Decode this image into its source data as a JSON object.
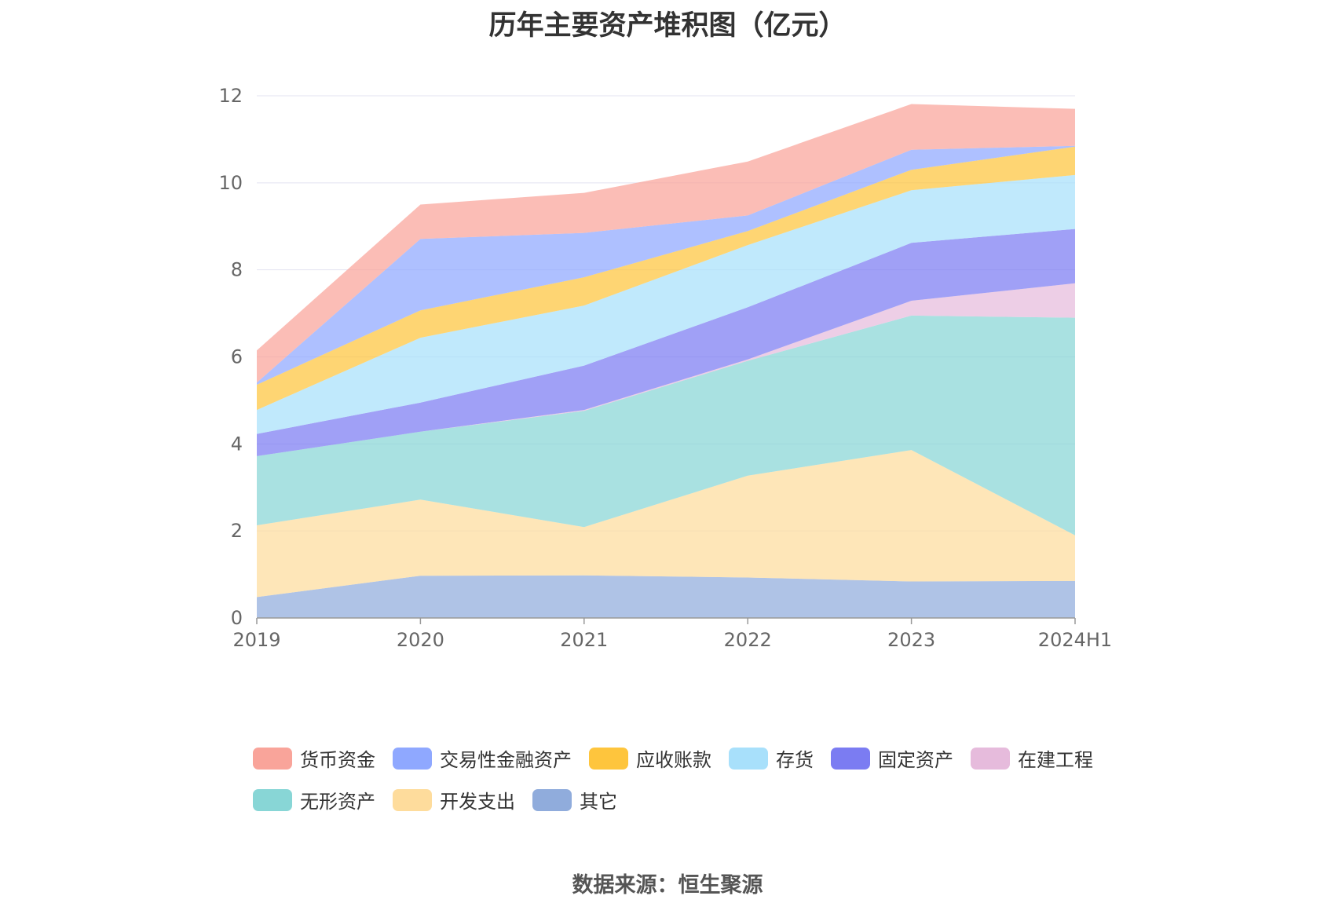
{
  "header": {
    "title": "历年主要资产堆积图（亿元）"
  },
  "footer": {
    "source": "数据来源：恒生聚源"
  },
  "legend": {
    "rows": [
      [
        {
          "label": "货币资金",
          "color": "#f9a49a"
        },
        {
          "label": "交易性金融资产",
          "color": "#8fa8ff"
        },
        {
          "label": "应收账款",
          "color": "#fec53d"
        },
        {
          "label": "存货",
          "color": "#a8e0fb"
        },
        {
          "label": "固定资产",
          "color": "#7b7cf2"
        },
        {
          "label": "在建工程",
          "color": "#e6bbdc"
        }
      ],
      [
        {
          "label": "无形资产",
          "color": "#88d6d6"
        },
        {
          "label": "开发支出",
          "color": "#fedc9c"
        },
        {
          "label": "其它",
          "color": "#90acdc"
        }
      ]
    ]
  },
  "chart_data": {
    "type": "area",
    "stacked": true,
    "title": "历年主要资产堆积图（亿元）",
    "categories": [
      "2019",
      "2020",
      "2021",
      "2022",
      "2023",
      "2024H1"
    ],
    "ylim": [
      0,
      12
    ],
    "yticks": [
      0,
      2,
      4,
      6,
      8,
      10,
      12
    ],
    "grid": true,
    "legend_position": "bottom",
    "series": [
      {
        "name": "其它",
        "color": "#90acdc",
        "values": [
          0.48,
          0.97,
          0.98,
          0.93,
          0.84,
          0.85
        ]
      },
      {
        "name": "开发支出",
        "color": "#fedc9c",
        "values": [
          1.65,
          1.75,
          1.11,
          2.34,
          3.02,
          1.05
        ]
      },
      {
        "name": "无形资产",
        "color": "#88d6d6",
        "values": [
          1.59,
          1.56,
          2.67,
          2.64,
          3.09,
          5.0
        ]
      },
      {
        "name": "在建工程",
        "color": "#e6bbdc",
        "values": [
          0,
          0,
          0.02,
          0.03,
          0.34,
          0.79
        ]
      },
      {
        "name": "固定资产",
        "color": "#7b7cf2",
        "values": [
          0.51,
          0.67,
          1.02,
          1.2,
          1.33,
          1.25
        ]
      },
      {
        "name": "存货",
        "color": "#a8e0fb",
        "values": [
          0.55,
          1.49,
          1.38,
          1.43,
          1.21,
          1.24
        ]
      },
      {
        "name": "应收账款",
        "color": "#fec53d",
        "values": [
          0.58,
          0.63,
          0.65,
          0.32,
          0.47,
          0.65
        ]
      },
      {
        "name": "交易性金融资产",
        "color": "#8fa8ff",
        "values": [
          0.05,
          1.64,
          1.02,
          0.36,
          0.46,
          0.02
        ]
      },
      {
        "name": "货币资金",
        "color": "#f9a49a",
        "values": [
          0.74,
          0.79,
          0.92,
          1.24,
          1.05,
          0.85
        ]
      }
    ]
  }
}
